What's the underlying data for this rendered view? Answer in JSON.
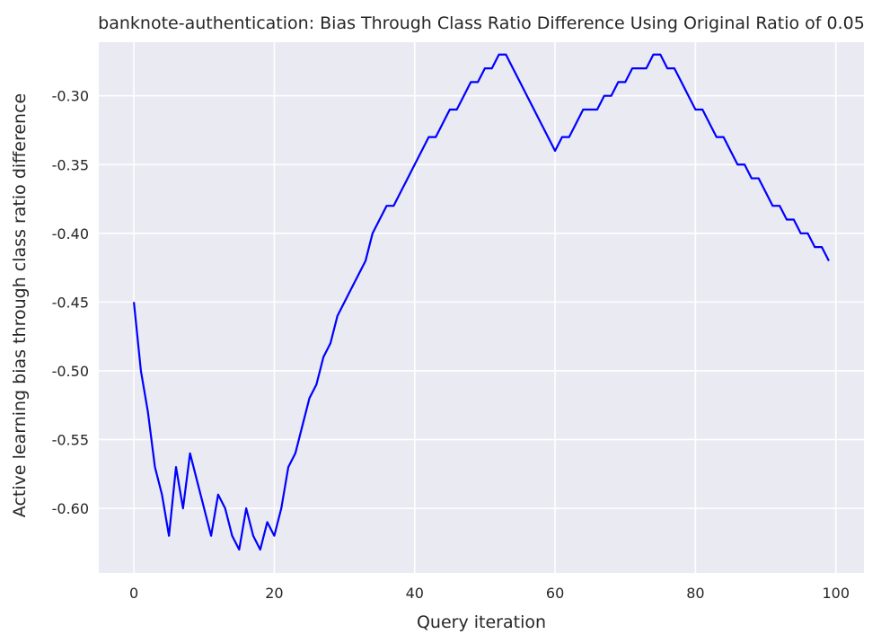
{
  "chart_data": {
    "type": "line",
    "title": "banknote-authentication: Bias Through Class Ratio Difference Using Original Ratio of 0.05",
    "xlabel": "Query iteration",
    "ylabel": "Active learning bias through class ratio difference",
    "xlim": [
      -5,
      104
    ],
    "ylim": [
      -0.647,
      -0.261
    ],
    "x_ticks": [
      0,
      20,
      40,
      60,
      80,
      100
    ],
    "x_tick_labels": [
      "0",
      "20",
      "40",
      "60",
      "80",
      "100"
    ],
    "y_ticks": [
      -0.3,
      -0.35,
      -0.4,
      -0.45,
      -0.5,
      -0.55,
      -0.6
    ],
    "y_tick_labels": [
      "-0.30",
      "-0.35",
      "-0.40",
      "-0.45",
      "-0.50",
      "-0.55",
      "-0.60"
    ],
    "grid": true,
    "background_color": "#eaeaf2",
    "grid_color": "#ffffff",
    "series": [
      {
        "color": "#0000ff",
        "x": [
          0,
          1,
          2,
          3,
          4,
          5,
          6,
          7,
          8,
          9,
          10,
          11,
          12,
          13,
          14,
          15,
          16,
          17,
          18,
          19,
          20,
          21,
          22,
          23,
          24,
          25,
          26,
          27,
          28,
          29,
          30,
          31,
          32,
          33,
          34,
          35,
          36,
          37,
          38,
          39,
          40,
          41,
          42,
          43,
          44,
          45,
          46,
          47,
          48,
          49,
          50,
          51,
          52,
          53,
          54,
          55,
          56,
          57,
          58,
          59,
          60,
          61,
          62,
          63,
          64,
          65,
          66,
          67,
          68,
          69,
          70,
          71,
          72,
          73,
          74,
          75,
          76,
          77,
          78,
          79,
          80,
          81,
          82,
          83,
          84,
          85,
          86,
          87,
          88,
          89,
          90,
          91,
          92,
          93,
          94,
          95,
          96,
          97,
          98,
          99
        ],
        "values": [
          -0.45,
          -0.5,
          -0.53,
          -0.57,
          -0.59,
          -0.62,
          -0.57,
          -0.6,
          -0.56,
          -0.58,
          -0.6,
          -0.62,
          -0.59,
          -0.6,
          -0.62,
          -0.63,
          -0.6,
          -0.62,
          -0.63,
          -0.61,
          -0.62,
          -0.6,
          -0.57,
          -0.56,
          -0.54,
          -0.52,
          -0.51,
          -0.49,
          -0.48,
          -0.46,
          -0.45,
          -0.44,
          -0.43,
          -0.42,
          -0.4,
          -0.39,
          -0.38,
          -0.38,
          -0.37,
          -0.36,
          -0.35,
          -0.34,
          -0.33,
          -0.33,
          -0.32,
          -0.31,
          -0.31,
          -0.3,
          -0.29,
          -0.29,
          -0.28,
          -0.28,
          -0.27,
          -0.27,
          -0.28,
          -0.29,
          -0.3,
          -0.31,
          -0.32,
          -0.33,
          -0.34,
          -0.33,
          -0.33,
          -0.32,
          -0.31,
          -0.31,
          -0.31,
          -0.3,
          -0.3,
          -0.29,
          -0.29,
          -0.28,
          -0.28,
          -0.28,
          -0.27,
          -0.27,
          -0.28,
          -0.28,
          -0.29,
          -0.3,
          -0.31,
          -0.31,
          -0.32,
          -0.33,
          -0.33,
          -0.34,
          -0.35,
          -0.35,
          -0.36,
          -0.36,
          -0.37,
          -0.38,
          -0.38,
          -0.39,
          -0.39,
          -0.4,
          -0.4,
          -0.41,
          -0.41,
          -0.42
        ]
      }
    ]
  }
}
